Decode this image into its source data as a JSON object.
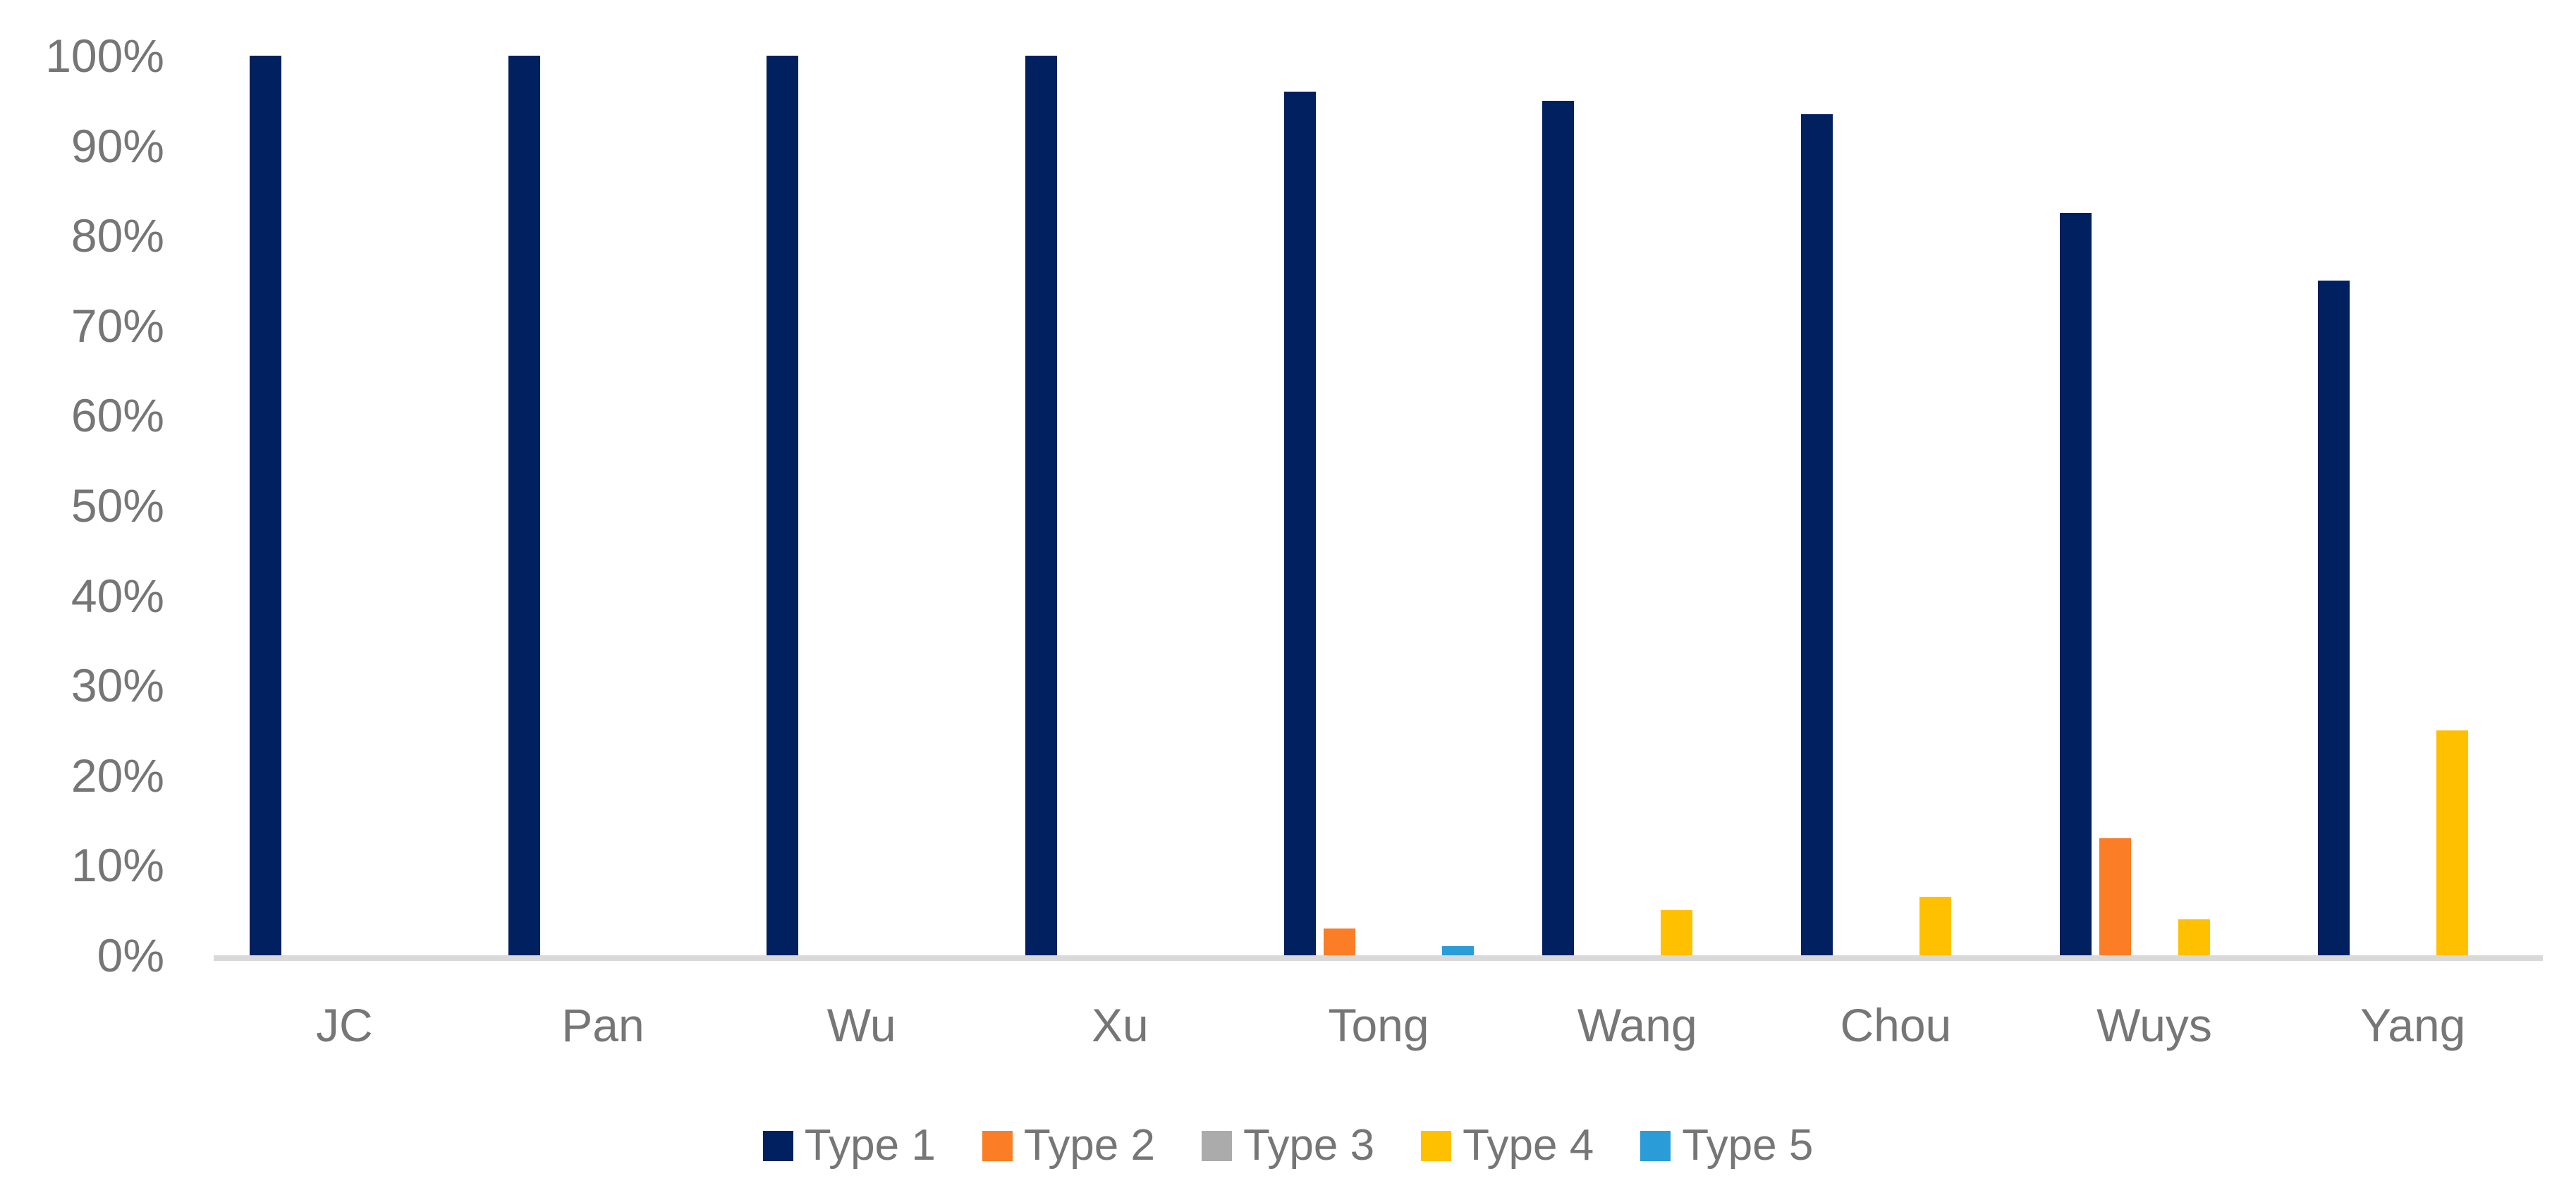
{
  "chart_data": {
    "type": "bar",
    "title": "",
    "categories": [
      "JC",
      "Pan",
      "Wu",
      "Xu",
      "Tong",
      "Wang",
      "Chou",
      "Wuys",
      "Yang"
    ],
    "series": [
      {
        "name": "Type 1",
        "color": "#002060",
        "values": [
          100,
          100,
          100,
          100,
          96,
          95,
          93.5,
          82.5,
          75
        ]
      },
      {
        "name": "Type 2",
        "color": "#FB7D26",
        "values": [
          0,
          0,
          0,
          0,
          3,
          0,
          0,
          13,
          0
        ]
      },
      {
        "name": "Type 3",
        "color": "#ABABAB",
        "values": [
          0,
          0,
          0,
          0,
          0,
          0,
          0,
          0,
          0
        ]
      },
      {
        "name": "Type 4",
        "color": "#FFC000",
        "values": [
          0,
          0,
          0,
          0,
          0,
          5,
          6.5,
          4,
          25
        ]
      },
      {
        "name": "Type 5",
        "color": "#2A9CD7",
        "values": [
          0,
          0,
          0,
          0,
          1,
          0,
          0,
          0,
          0
        ]
      }
    ],
    "y_axis": {
      "min": 0,
      "max": 100,
      "tick_step": 10,
      "tick_labels": [
        "0%",
        "10%",
        "20%",
        "30%",
        "40%",
        "50%",
        "60%",
        "70%",
        "80%",
        "90%",
        "100%"
      ],
      "grid": false
    },
    "x_axis": {
      "label": ""
    },
    "legend": {
      "position": "bottom",
      "entries": [
        "Type 1",
        "Type 2",
        "Type 3",
        "Type 4",
        "Type 5"
      ]
    },
    "colors": {
      "axis_line": "#D9D9D9",
      "label_text": "#767676",
      "background": "#FFFFFF"
    }
  }
}
